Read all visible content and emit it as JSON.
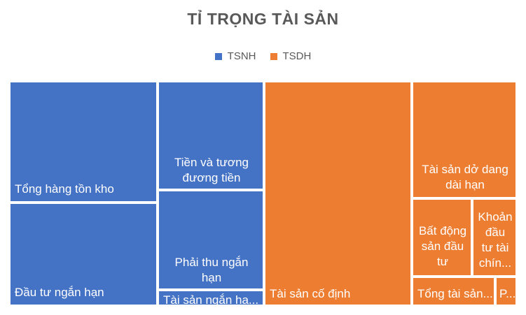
{
  "chart_data": {
    "type": "treemap",
    "title": "TỈ TRỌNG TÀI SẢN",
    "legend": {
      "placement": "top",
      "entries": [
        {
          "name": "TSNH",
          "color": "#4472C4"
        },
        {
          "name": "TSDH",
          "color": "#ED7D31"
        }
      ]
    },
    "groups": [
      {
        "name": "TSNH",
        "color": "#4472C4",
        "items": [
          {
            "label": "Tổng hàng tồn kho",
            "value": 365
          },
          {
            "label": "Đầu tư ngắn hạn",
            "value": 305
          },
          {
            "label": "Tiền và tương đương tiền",
            "value": 232
          },
          {
            "label": "Phải thu ngắn hạn",
            "value": 213
          },
          {
            "label": "Tài sản ngắn hạ...",
            "value": 31
          }
        ]
      },
      {
        "name": "TSDH",
        "color": "#ED7D31",
        "items": [
          {
            "label": "Tài sản cố định",
            "value": 725
          },
          {
            "label": "Tài sản dở dang dài hạn",
            "value": 247
          },
          {
            "label": "Bất động sản đầu tư",
            "value": 126
          },
          {
            "label": "Khoản đầu tư tài chín...",
            "value": 89
          },
          {
            "label": "Tổng tài sản...",
            "value": 59
          },
          {
            "label": "P...",
            "value": 13
          }
        ]
      }
    ]
  }
}
